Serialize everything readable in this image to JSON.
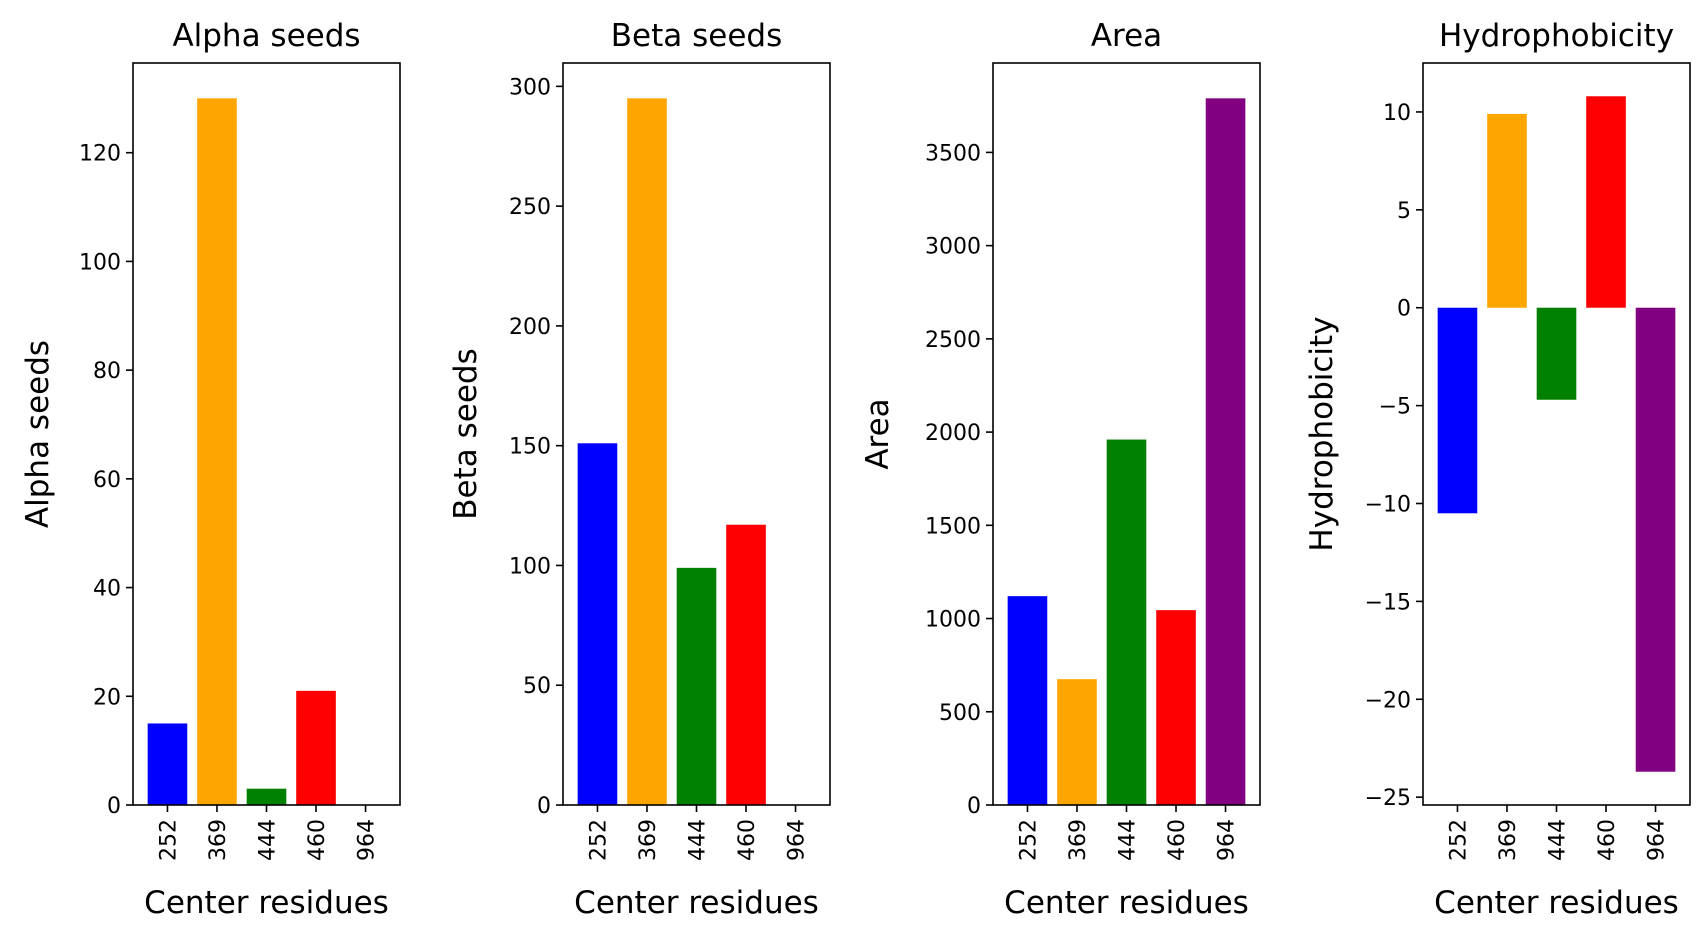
{
  "chart_data": [
    {
      "type": "bar",
      "title": "Alpha seeds",
      "xlabel": "Center residues",
      "ylabel": "Alpha seeds",
      "categories": [
        "252",
        "369",
        "444",
        "460",
        "964"
      ],
      "values": [
        15,
        130,
        3,
        21,
        0
      ],
      "colors": [
        "#0000ff",
        "#ffa500",
        "#008000",
        "#ff0000",
        "#800080"
      ],
      "ylim": [
        0,
        136.5
      ],
      "yticks": [
        0,
        20,
        40,
        60,
        80,
        100,
        120
      ],
      "ytick_labels": [
        "0",
        "20",
        "40",
        "60",
        "80",
        "100",
        "120"
      ],
      "grid": false,
      "legend": "none"
    },
    {
      "type": "bar",
      "title": "Beta seeds",
      "xlabel": "Center residues",
      "ylabel": "Beta seeds",
      "categories": [
        "252",
        "369",
        "444",
        "460",
        "964"
      ],
      "values": [
        151,
        295,
        99,
        117,
        0
      ],
      "colors": [
        "#0000ff",
        "#ffa500",
        "#008000",
        "#ff0000",
        "#800080"
      ],
      "ylim": [
        0,
        309.75
      ],
      "yticks": [
        0,
        50,
        100,
        150,
        200,
        250,
        300
      ],
      "ytick_labels": [
        "0",
        "50",
        "100",
        "150",
        "200",
        "250",
        "300"
      ],
      "grid": false,
      "legend": "none"
    },
    {
      "type": "bar",
      "title": "Area",
      "xlabel": "Center residues",
      "ylabel": "Area",
      "categories": [
        "252",
        "369",
        "444",
        "460",
        "964"
      ],
      "values": [
        1120,
        675,
        1960,
        1045,
        3790
      ],
      "colors": [
        "#0000ff",
        "#ffa500",
        "#008000",
        "#ff0000",
        "#800080"
      ],
      "ylim": [
        0,
        3979.5
      ],
      "yticks": [
        0,
        500,
        1000,
        1500,
        2000,
        2500,
        3000,
        3500
      ],
      "ytick_labels": [
        "0",
        "500",
        "1000",
        "1500",
        "2000",
        "2500",
        "3000",
        "3500"
      ],
      "grid": false,
      "legend": "none"
    },
    {
      "type": "bar",
      "title": "Hydrophobicity",
      "xlabel": "Center residues",
      "ylabel": "Hydrophobicity",
      "categories": [
        "252",
        "369",
        "444",
        "460",
        "964"
      ],
      "values": [
        -10.5,
        9.9,
        -4.7,
        10.8,
        -23.7
      ],
      "colors": [
        "#0000ff",
        "#ffa500",
        "#008000",
        "#ff0000",
        "#800080"
      ],
      "ylim": [
        -25.4,
        12.5
      ],
      "yticks": [
        -25,
        -20,
        -15,
        -10,
        -5,
        0,
        5,
        10
      ],
      "ytick_labels": [
        "−25",
        "−20",
        "−15",
        "−10",
        "−5",
        "0",
        "5",
        "10"
      ],
      "grid": false,
      "legend": "none"
    }
  ]
}
